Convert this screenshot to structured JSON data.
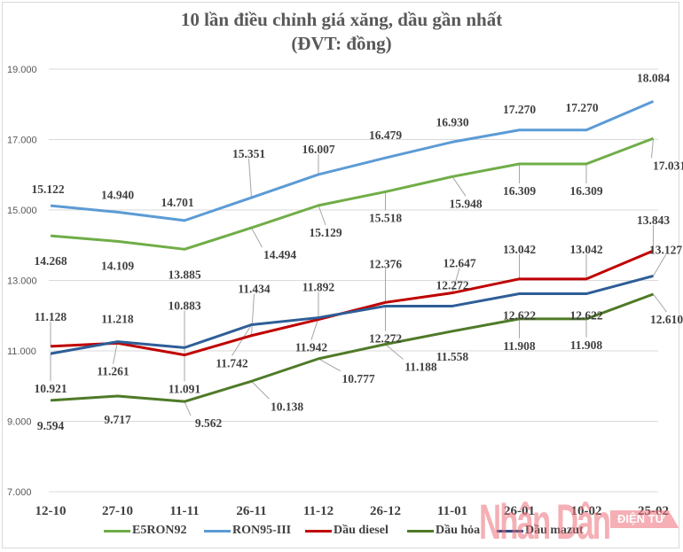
{
  "chart_data": {
    "type": "line",
    "title": "10 lần điều chỉnh giá xăng, dầu gần nhất",
    "subtitle": "(ĐVT: đồng)",
    "xlabel": "",
    "ylabel": "",
    "categories": [
      "12-10",
      "27-10",
      "11-11",
      "26-11",
      "11-12",
      "26-12",
      "11-01",
      "26-01",
      "10-02",
      "25-02"
    ],
    "y_ticks": [
      "7.000",
      "9.000",
      "11.000",
      "13.000",
      "15.000",
      "17.000",
      "19.000"
    ],
    "ylim": [
      7000,
      19000
    ],
    "grid": true,
    "legend_position": "bottom",
    "series": [
      {
        "name": "E5RON92",
        "color": "#70ad47",
        "values": [
          14268,
          14109,
          13885,
          14494,
          15129,
          15518,
          15948,
          16309,
          16309,
          17031
        ],
        "labels": [
          "14.268",
          "14.109",
          "13.885",
          "14.494",
          "15.129",
          "15.518",
          "15.948",
          "16.309",
          "16.309",
          "17.031"
        ]
      },
      {
        "name": "RON95-III",
        "color": "#5b9bd5",
        "values": [
          15122,
          14940,
          14701,
          15351,
          16007,
          16479,
          16930,
          17270,
          17270,
          18084
        ],
        "labels": [
          "15.122",
          "14.940",
          "14.701",
          "15.351",
          "16.007",
          "16.479",
          "16.930",
          "17.270",
          "17.270",
          "18.084"
        ]
      },
      {
        "name": "Dầu diesel",
        "color": "#c00000",
        "values": [
          11128,
          11218,
          10883,
          11434,
          11892,
          12376,
          12647,
          13042,
          13042,
          13843
        ],
        "labels": [
          "11.128",
          "11.218",
          "10.883",
          "11.434",
          "11.892",
          "12.376",
          "12.647",
          "13.042",
          "13.042",
          "13.843"
        ]
      },
      {
        "name": "Dầu hỏa",
        "color": "#4f7a28",
        "values": [
          9594,
          9717,
          9562,
          10138,
          10777,
          11188,
          11558,
          11908,
          11908,
          12610
        ],
        "labels": [
          "9.594",
          "9.717",
          "9.562",
          "10.138",
          "10.777",
          "11.188",
          "11.558",
          "11.908",
          "11.908",
          "12.610"
        ]
      },
      {
        "name": "Dầu mazut",
        "color": "#2e5e97",
        "values": [
          10921,
          11261,
          11091,
          11742,
          11942,
          12272,
          12272,
          12622,
          12622,
          13127
        ],
        "labels": [
          "10.921",
          "11.261",
          "11.091",
          "11.742",
          "11.942",
          "12.272",
          "12.272",
          "12.622",
          "12.622",
          "13.127"
        ]
      }
    ]
  },
  "watermark": {
    "brand": "Nhân Dân",
    "badge": "ĐIỆN TỬ"
  }
}
